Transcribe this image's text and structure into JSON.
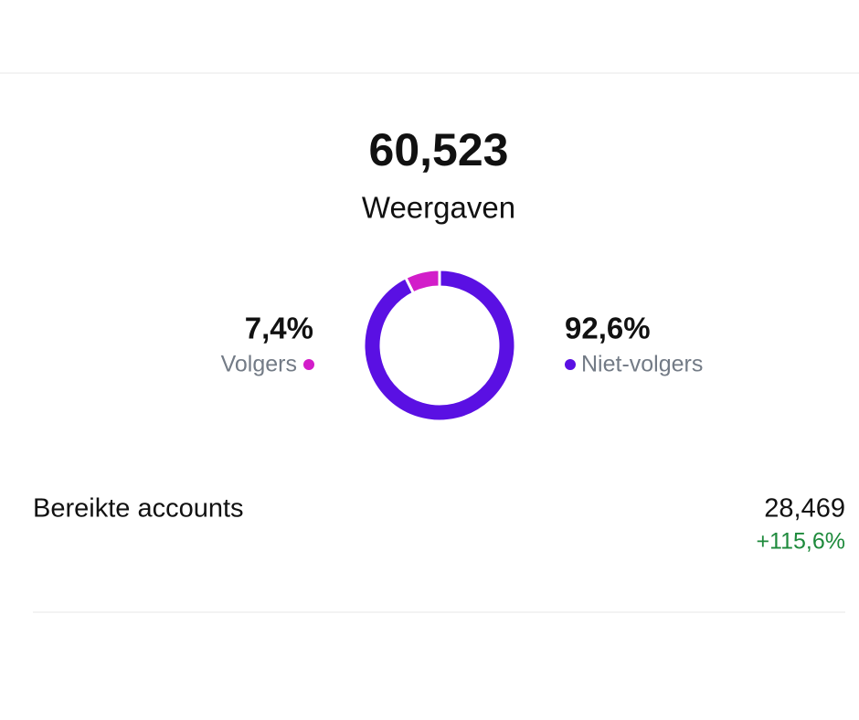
{
  "header": {
    "total": "60,523",
    "label": "Weergaven"
  },
  "chart_data": {
    "type": "pie",
    "donut": true,
    "categories": [
      "Volgers",
      "Niet-volgers"
    ],
    "values": [
      7.4,
      92.6
    ],
    "value_labels": [
      "7,4%",
      "92,6%"
    ],
    "colors": [
      "#d21dc9",
      "#5a10e3"
    ]
  },
  "stats": {
    "label": "Bereikte accounts",
    "value": "28,469",
    "change": "+115,6%"
  }
}
